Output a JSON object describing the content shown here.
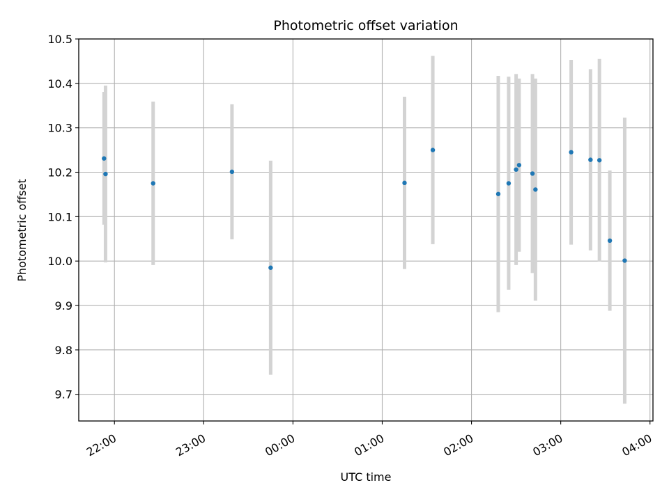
{
  "chart_data": {
    "type": "scatter",
    "title": "Photometric offset variation",
    "xlabel": "UTC time",
    "ylabel": "Photometric offset",
    "x_tick_labels": [
      "22:00",
      "23:00",
      "00:00",
      "01:00",
      "02:00",
      "03:00",
      "04:00"
    ],
    "y_tick_labels": [
      "9.7",
      "9.8",
      "9.9",
      "10.0",
      "10.1",
      "10.2",
      "10.3",
      "10.4",
      "10.5"
    ],
    "xlim": [
      "21:36",
      "04:02"
    ],
    "ylim": [
      9.64,
      10.5
    ],
    "grid": true,
    "marker_color": "#1f77b4",
    "errorbar_color": "#d3d3d3",
    "points": [
      {
        "time": "21:53",
        "y": 10.231,
        "ylow": 10.082,
        "yhigh": 10.381
      },
      {
        "time": "21:54",
        "y": 10.196,
        "ylow": 9.997,
        "yhigh": 10.395
      },
      {
        "time": "22:26",
        "y": 10.175,
        "ylow": 9.991,
        "yhigh": 10.359
      },
      {
        "time": "23:19",
        "y": 10.201,
        "ylow": 10.049,
        "yhigh": 10.353
      },
      {
        "time": "23:45",
        "y": 9.985,
        "ylow": 9.744,
        "yhigh": 10.226
      },
      {
        "time": "01:15",
        "y": 10.176,
        "ylow": 9.982,
        "yhigh": 10.37
      },
      {
        "time": "01:34",
        "y": 10.25,
        "ylow": 10.038,
        "yhigh": 10.462
      },
      {
        "time": "02:18",
        "y": 10.151,
        "ylow": 9.885,
        "yhigh": 10.417
      },
      {
        "time": "02:25",
        "y": 10.175,
        "ylow": 9.935,
        "yhigh": 10.415
      },
      {
        "time": "02:30",
        "y": 10.206,
        "ylow": 9.991,
        "yhigh": 10.421
      },
      {
        "time": "02:32",
        "y": 10.216,
        "ylow": 10.021,
        "yhigh": 10.411
      },
      {
        "time": "02:41",
        "y": 10.197,
        "ylow": 9.973,
        "yhigh": 10.421
      },
      {
        "time": "02:43",
        "y": 10.161,
        "ylow": 9.911,
        "yhigh": 10.411
      },
      {
        "time": "03:07",
        "y": 10.245,
        "ylow": 10.037,
        "yhigh": 10.453
      },
      {
        "time": "03:20",
        "y": 10.228,
        "ylow": 10.024,
        "yhigh": 10.432
      },
      {
        "time": "03:26",
        "y": 10.227,
        "ylow": 9.999,
        "yhigh": 10.455
      },
      {
        "time": "03:33",
        "y": 10.046,
        "ylow": 9.888,
        "yhigh": 10.204
      },
      {
        "time": "03:43",
        "y": 10.001,
        "ylow": 9.679,
        "yhigh": 10.323
      }
    ]
  }
}
